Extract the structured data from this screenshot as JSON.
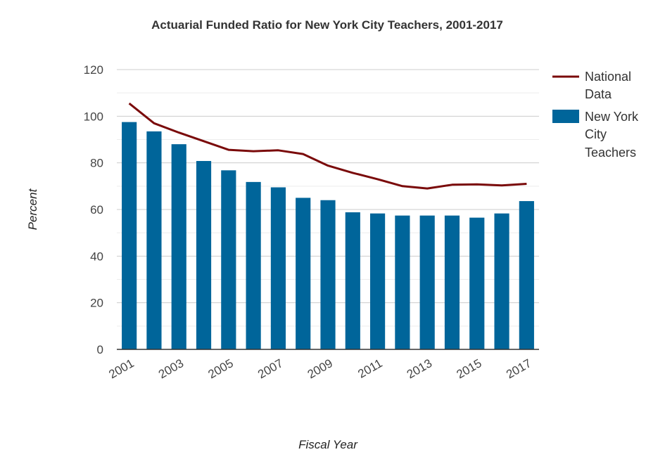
{
  "chart_data": {
    "type": "bar",
    "title": "Actuarial Funded Ratio for New York City Teachers, 2001-2017",
    "xlabel": "Fiscal Year",
    "ylabel": "Percent",
    "ylim": [
      0,
      120
    ],
    "y_ticks": [
      0,
      20,
      40,
      60,
      80,
      100,
      120
    ],
    "grid": true,
    "legend_position": "right",
    "categories": [
      "2001",
      "2002",
      "2003",
      "2004",
      "2005",
      "2006",
      "2007",
      "2008",
      "2009",
      "2010",
      "2011",
      "2012",
      "2013",
      "2014",
      "2015",
      "2016",
      "2017"
    ],
    "x_tick_labels": [
      "2001",
      "2003",
      "2005",
      "2007",
      "2009",
      "2011",
      "2013",
      "2015",
      "2017"
    ],
    "series": [
      {
        "name": "New York City Teachers",
        "type": "bar",
        "color": "#00659a",
        "values": [
          97.5,
          93.5,
          88,
          80.8,
          76.8,
          71.8,
          69.5,
          65,
          64,
          58.8,
          58.3,
          57.4,
          57.4,
          57.4,
          56.5,
          58.3,
          63.6
        ]
      },
      {
        "name": "National Data",
        "type": "line",
        "color": "#7a0a0a",
        "values": [
          105.5,
          97,
          93,
          89.3,
          85.6,
          85,
          85.4,
          83.8,
          78.8,
          75.7,
          73,
          70,
          69,
          70.6,
          70.8,
          70.3,
          71
        ]
      }
    ],
    "legend": {
      "line_label_lines": [
        "National",
        "Data"
      ],
      "bar_label_lines": [
        "New York",
        "City",
        "Teachers"
      ]
    }
  }
}
